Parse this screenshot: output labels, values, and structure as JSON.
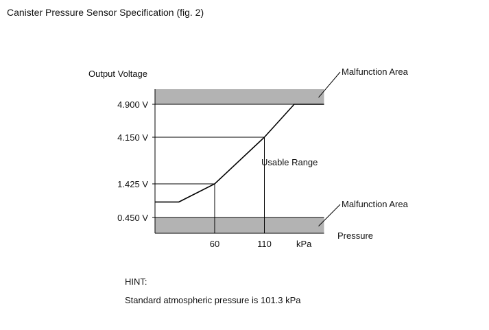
{
  "figure": {
    "title": "Canister Pressure Sensor Specification (fig. 2)"
  },
  "hint": {
    "title": "HINT:",
    "text": "Standard atmospheric pressure is 101.3 kPa"
  },
  "colors": {
    "malfunction_fill": "#b3b3b3",
    "line": "#000000"
  },
  "chart_data": {
    "type": "line",
    "ylabel": "Output Voltage",
    "xlabel": "Pressure",
    "x_unit_label": "kPa",
    "y_ticks": [
      {
        "value": 0.45,
        "label": "0.450 V"
      },
      {
        "value": 1.425,
        "label": "1.425 V"
      },
      {
        "value": 4.15,
        "label": "4.150 V"
      },
      {
        "value": 4.9,
        "label": "4.900 V"
      }
    ],
    "x_ticks": [
      {
        "value": 60,
        "label": "60"
      },
      {
        "value": 110,
        "label": "110"
      }
    ],
    "series": [
      {
        "points": [
          {
            "x": 0,
            "y": 0.9
          },
          {
            "x": 24,
            "y": 0.9
          },
          {
            "x": 60,
            "y": 1.425
          },
          {
            "x": 110,
            "y": 4.15
          },
          {
            "x": 140,
            "y": 4.9
          },
          {
            "x": 170,
            "y": 4.9
          }
        ]
      }
    ],
    "guides": [
      {
        "x": 60,
        "y": 1.425
      },
      {
        "x": 110,
        "y": 4.15
      }
    ],
    "malfunction_zones": [
      {
        "label": "Malfunction Area",
        "y_from": 4.9,
        "y_to": 5.35
      },
      {
        "label": "Malfunction Area",
        "y_from": 0.0,
        "y_to": 0.45
      }
    ],
    "region_label": "Usable Range",
    "annotation_region_y": 2.8,
    "xlim": [
      0,
      170
    ],
    "ylim": [
      0,
      5.35
    ]
  }
}
